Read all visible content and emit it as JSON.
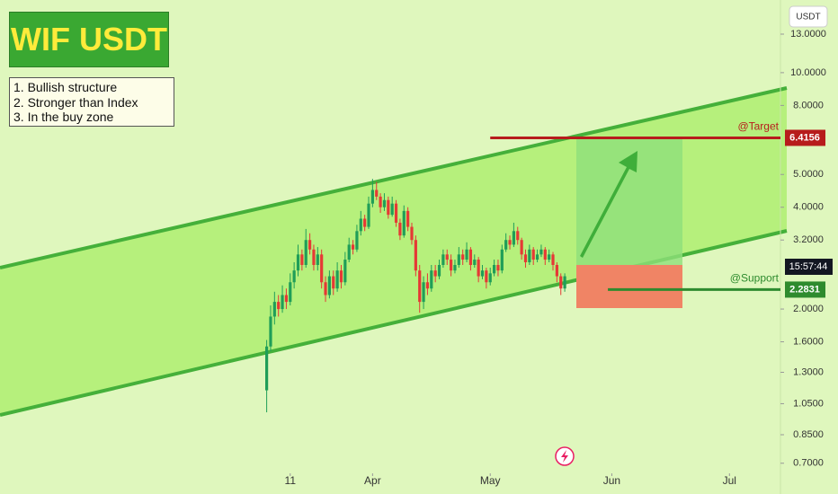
{
  "chart_data": {
    "type": "candlestick",
    "title": "WIF USDT",
    "notes": [
      "1. Bullish structure",
      "2. Stronger than Index",
      "3. In the buy zone"
    ],
    "currency": "USDT",
    "countdown": "15:57:44",
    "x": [
      4,
      5,
      6,
      7,
      8,
      9,
      10,
      11,
      12,
      13,
      14,
      15,
      16,
      17,
      18,
      19,
      20,
      21,
      22,
      23,
      24,
      25,
      26,
      27,
      28,
      29,
      30,
      31,
      32,
      33,
      34,
      35,
      36,
      37,
      38,
      39,
      40,
      41,
      42,
      43,
      44,
      45,
      46,
      47,
      48,
      49,
      50,
      51,
      52,
      53,
      54,
      55,
      56,
      57,
      58,
      59,
      60,
      61,
      62,
      63,
      64,
      65,
      66,
      67,
      68,
      69,
      70,
      71,
      72,
      73,
      74,
      75,
      76,
      77,
      78,
      79,
      80
    ],
    "open": [
      1.15,
      1.55,
      1.9,
      2.1,
      2.0,
      2.2,
      2.1,
      2.4,
      2.6,
      2.9,
      2.7,
      3.2,
      3.0,
      2.7,
      2.9,
      2.4,
      2.2,
      2.5,
      2.3,
      2.6,
      2.4,
      2.8,
      3.1,
      3.0,
      3.4,
      3.7,
      3.5,
      4.1,
      4.5,
      4.3,
      4.0,
      4.2,
      3.8,
      4.1,
      3.6,
      3.3,
      3.9,
      3.5,
      3.2,
      2.6,
      2.1,
      2.4,
      2.3,
      2.6,
      2.5,
      2.7,
      2.9,
      2.8,
      2.6,
      2.7,
      2.9,
      2.8,
      3.0,
      2.7,
      2.8,
      2.5,
      2.6,
      2.4,
      2.55,
      2.7,
      2.6,
      3.0,
      3.2,
      3.1,
      3.4,
      3.2,
      2.9,
      2.75,
      3.0,
      2.8,
      2.9,
      3.0,
      2.8,
      2.9,
      2.7,
      2.5,
      2.3
    ],
    "high": [
      1.62,
      2.05,
      2.25,
      2.2,
      2.35,
      2.3,
      2.55,
      2.75,
      3.1,
      3.0,
      3.45,
      3.35,
      3.1,
      3.05,
      3.0,
      2.5,
      2.6,
      2.6,
      2.75,
      2.7,
      2.95,
      3.25,
      3.2,
      3.55,
      3.9,
      3.8,
      4.3,
      4.85,
      4.75,
      4.4,
      4.4,
      4.3,
      4.3,
      4.2,
      3.7,
      4.05,
      4.0,
      3.6,
      3.3,
      2.7,
      2.5,
      2.55,
      2.7,
      2.7,
      2.8,
      3.0,
      3.0,
      2.9,
      2.8,
      3.05,
      3.0,
      3.15,
      3.05,
      2.9,
      2.85,
      2.7,
      2.65,
      2.65,
      2.8,
      2.8,
      3.1,
      3.35,
      3.3,
      3.6,
      3.5,
      3.25,
      3.0,
      3.1,
      3.05,
      3.0,
      3.1,
      3.05,
      3.0,
      2.95,
      2.75,
      2.55,
      2.55
    ],
    "low": [
      0.99,
      1.5,
      1.8,
      1.9,
      1.95,
      2.0,
      2.05,
      2.3,
      2.5,
      2.6,
      2.65,
      2.9,
      2.6,
      2.6,
      2.3,
      2.1,
      2.15,
      2.2,
      2.25,
      2.3,
      2.35,
      2.75,
      2.9,
      2.95,
      3.3,
      3.4,
      3.45,
      4.0,
      4.2,
      3.85,
      3.9,
      3.7,
      3.75,
      3.5,
      3.2,
      3.25,
      3.4,
      3.1,
      2.5,
      1.95,
      2.0,
      2.2,
      2.25,
      2.4,
      2.45,
      2.65,
      2.7,
      2.5,
      2.55,
      2.65,
      2.7,
      2.75,
      2.6,
      2.65,
      2.4,
      2.45,
      2.3,
      2.35,
      2.5,
      2.5,
      2.55,
      2.95,
      3.0,
      3.05,
      3.1,
      2.8,
      2.65,
      2.7,
      2.7,
      2.75,
      2.85,
      2.7,
      2.75,
      2.6,
      2.4,
      2.2,
      2.25
    ],
    "close": [
      1.55,
      1.9,
      2.1,
      2.0,
      2.2,
      2.1,
      2.4,
      2.6,
      2.9,
      2.7,
      3.2,
      3.0,
      2.7,
      2.9,
      2.4,
      2.2,
      2.5,
      2.3,
      2.6,
      2.4,
      2.8,
      3.1,
      3.0,
      3.4,
      3.7,
      3.5,
      4.1,
      4.5,
      4.3,
      4.0,
      4.2,
      3.8,
      4.1,
      3.6,
      3.3,
      3.9,
      3.5,
      3.2,
      2.6,
      2.1,
      2.4,
      2.3,
      2.6,
      2.5,
      2.7,
      2.9,
      2.8,
      2.6,
      2.7,
      2.9,
      2.8,
      3.0,
      2.7,
      2.8,
      2.5,
      2.6,
      2.4,
      2.55,
      2.7,
      2.6,
      3.0,
      3.2,
      3.1,
      3.4,
      3.2,
      2.9,
      2.75,
      3.0,
      2.8,
      2.9,
      3.0,
      2.8,
      2.9,
      2.7,
      2.5,
      2.3,
      2.5
    ],
    "up_color": "#1f9e58",
    "down_color": "#e53935",
    "levels": [
      {
        "name": "@Target",
        "value": 6.4156,
        "color": "#b71c1c",
        "from": 61
      },
      {
        "name": "@Support",
        "value": 2.2831,
        "color": "#2e8b2e",
        "from": 91
      }
    ],
    "log_scale": true,
    "ylim": [
      0.682,
      16.4
    ],
    "yticks": [
      {
        "value": 13,
        "label": "13.0000"
      },
      {
        "value": 10,
        "label": "10.0000"
      },
      {
        "value": 8,
        "label": "8.0000"
      },
      {
        "value": 5,
        "label": "5.0000"
      },
      {
        "value": 4,
        "label": "4.0000"
      },
      {
        "value": 3.2,
        "label": "3.2000"
      },
      {
        "value": 2,
        "label": "2.0000"
      },
      {
        "value": 1.6,
        "label": "1.6000"
      },
      {
        "value": 1.3,
        "label": "1.3000"
      },
      {
        "value": 1.05,
        "label": "1.0500"
      },
      {
        "value": 0.85,
        "label": "0.8500"
      },
      {
        "value": 0.7,
        "label": "0.7000"
      }
    ],
    "xlim": [
      -64,
      135
    ],
    "xticks": [
      {
        "value": 10,
        "label": "11"
      },
      {
        "value": 31,
        "label": "Apr"
      },
      {
        "value": 61,
        "label": "May"
      },
      {
        "value": 92,
        "label": "Jun"
      },
      {
        "value": 122,
        "label": "Jul"
      }
    ]
  }
}
